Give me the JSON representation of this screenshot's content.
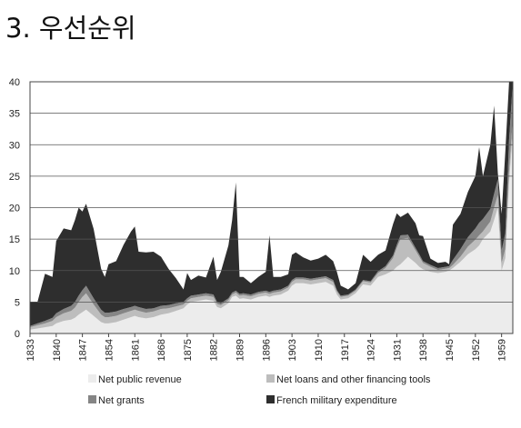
{
  "page": {
    "title": "3. 우선순위"
  },
  "colors": {
    "net_public_revenue": "#ececec",
    "net_loans": "#bdbdbd",
    "net_grants": "#858585",
    "military": "#2e2e2e",
    "gridline": "#555555"
  },
  "chart_data": {
    "type": "area",
    "stacked": true,
    "title": "",
    "xlabel": "",
    "ylabel": "",
    "xlim": [
      1833,
      1962
    ],
    "ylim": [
      0,
      40
    ],
    "yticks": [
      0,
      5,
      10,
      15,
      20,
      25,
      30,
      35,
      40
    ],
    "xticks": [
      1833,
      1840,
      1847,
      1854,
      1861,
      1868,
      1875,
      1882,
      1889,
      1896,
      1903,
      1910,
      1917,
      1924,
      1931,
      1938,
      1945,
      1952,
      1959
    ],
    "ytick_labels": [
      "0",
      "5",
      "10",
      "15",
      "20",
      "25",
      "30",
      "35",
      "40"
    ],
    "xtick_labels": [
      "1833",
      "1840",
      "1847",
      "1854",
      "1861",
      "1868",
      "1875",
      "1882",
      "1889",
      "1896",
      "1903",
      "1910",
      "1917",
      "1924",
      "1931",
      "1938",
      "1945",
      "1952",
      "1959"
    ],
    "grid": "horizontal",
    "legend_position": "bottom",
    "x": [
      1833,
      1835,
      1837,
      1839,
      1840,
      1842,
      1844,
      1845,
      1846,
      1847,
      1848,
      1850,
      1852,
      1853,
      1854,
      1856,
      1858,
      1860,
      1861,
      1862,
      1864,
      1866,
      1868,
      1870,
      1872,
      1874,
      1875,
      1876,
      1878,
      1880,
      1882,
      1883,
      1884,
      1886,
      1887,
      1888,
      1889,
      1890,
      1892,
      1894,
      1896,
      1897,
      1898,
      1900,
      1902,
      1903,
      1904,
      1906,
      1908,
      1910,
      1912,
      1914,
      1915,
      1916,
      1918,
      1920,
      1922,
      1924,
      1926,
      1928,
      1930,
      1931,
      1932,
      1934,
      1936,
      1937,
      1938,
      1940,
      1942,
      1944,
      1945,
      1946,
      1948,
      1950,
      1952,
      1953,
      1954,
      1956,
      1957,
      1958,
      1959,
      1960,
      1961,
      1962
    ],
    "series": [
      {
        "name": "Net public revenue",
        "values": [
          0.6,
          0.8,
          1.0,
          1.2,
          1.6,
          2.0,
          2.2,
          2.5,
          3.0,
          3.4,
          3.8,
          2.8,
          1.8,
          1.6,
          1.6,
          1.8,
          2.2,
          2.6,
          2.8,
          2.6,
          2.4,
          2.6,
          3.0,
          3.2,
          3.6,
          4.0,
          4.6,
          5.0,
          5.2,
          5.4,
          5.2,
          4.2,
          4.0,
          4.8,
          5.8,
          6.0,
          5.5,
          5.6,
          5.4,
          5.8,
          6.0,
          5.8,
          6.0,
          6.2,
          6.8,
          7.6,
          8.0,
          8.0,
          7.8,
          8.0,
          8.2,
          7.6,
          6.2,
          5.4,
          5.6,
          6.4,
          7.8,
          7.6,
          9.0,
          9.4,
          10.0,
          10.6,
          11.0,
          12.2,
          11.2,
          10.6,
          10.2,
          9.8,
          9.6,
          9.8,
          10.0,
          10.4,
          11.4,
          12.6,
          13.4,
          14.0,
          15.0,
          16.2,
          18.0,
          20.0,
          10.0,
          12.0,
          24.0,
          32.0
        ]
      },
      {
        "name": "Net loans and other financing tools",
        "values": [
          0.4,
          0.5,
          0.6,
          0.8,
          1.0,
          1.2,
          1.4,
          1.6,
          2.0,
          2.4,
          2.6,
          1.8,
          1.2,
          1.0,
          1.0,
          1.0,
          1.0,
          1.0,
          1.0,
          1.0,
          0.9,
          0.9,
          0.9,
          0.8,
          0.7,
          0.6,
          0.6,
          0.6,
          0.6,
          0.6,
          0.6,
          0.5,
          0.5,
          0.5,
          0.4,
          0.5,
          0.5,
          0.5,
          0.5,
          0.5,
          0.5,
          0.5,
          0.5,
          0.5,
          0.5,
          0.6,
          0.6,
          0.6,
          0.6,
          0.6,
          0.6,
          0.6,
          0.5,
          0.4,
          0.4,
          0.4,
          0.5,
          0.5,
          0.6,
          1.0,
          2.0,
          3.0,
          4.0,
          3.0,
          2.0,
          1.6,
          1.0,
          0.8,
          0.5,
          0.5,
          0.4,
          0.5,
          0.8,
          1.2,
          1.5,
          1.6,
          1.2,
          1.6,
          2.0,
          2.0,
          1.2,
          1.5,
          1.8,
          2.0
        ]
      },
      {
        "name": "Net grants",
        "values": [
          0.2,
          0.3,
          0.4,
          0.5,
          0.6,
          0.7,
          0.8,
          0.9,
          1.0,
          1.1,
          1.2,
          1.0,
          0.8,
          0.7,
          0.7,
          0.7,
          0.7,
          0.6,
          0.6,
          0.6,
          0.6,
          0.5,
          0.5,
          0.5,
          0.5,
          0.4,
          0.4,
          0.4,
          0.4,
          0.4,
          0.4,
          0.3,
          0.3,
          0.3,
          0.3,
          0.3,
          0.3,
          0.3,
          0.3,
          0.3,
          0.3,
          0.3,
          0.3,
          0.3,
          0.3,
          0.3,
          0.3,
          0.3,
          0.3,
          0.3,
          0.3,
          0.3,
          0.2,
          0.2,
          0.2,
          0.2,
          0.2,
          0.2,
          0.3,
          0.3,
          0.4,
          0.5,
          0.6,
          0.5,
          0.4,
          0.4,
          0.3,
          0.3,
          0.3,
          0.3,
          0.3,
          0.8,
          1.2,
          1.5,
          1.8,
          2.0,
          2.0,
          2.0,
          2.2,
          2.5,
          2.0,
          2.5,
          5.0,
          6.0
        ]
      },
      {
        "name": "French military expenditure",
        "values": [
          3.8,
          3.4,
          7.5,
          6.5,
          11.5,
          12.8,
          12.0,
          13.0,
          14.0,
          12.5,
          13.0,
          11.0,
          6.5,
          5.7,
          7.7,
          8.0,
          10.2,
          12.0,
          12.6,
          8.8,
          9.0,
          9.0,
          7.8,
          5.8,
          4.0,
          2.0,
          4.0,
          2.5,
          3.0,
          2.5,
          6.0,
          3.5,
          5.0,
          8.4,
          11.5,
          17.2,
          2.7,
          2.6,
          1.8,
          2.4,
          3.0,
          9.0,
          2.2,
          2.0,
          1.8,
          4.0,
          4.0,
          3.2,
          2.9,
          3.0,
          3.4,
          3.0,
          2.9,
          1.6,
          0.8,
          1.0,
          4.0,
          3.1,
          2.6,
          2.5,
          5.0,
          5.0,
          2.9,
          3.5,
          3.9,
          3.0,
          4.0,
          1.0,
          0.8,
          0.8,
          0.3,
          5.6,
          5.6,
          7.2,
          8.3,
          12.0,
          6.8,
          10.2,
          14.0,
          1.0,
          5.8,
          13.0,
          10.2,
          0.0
        ]
      }
    ]
  }
}
